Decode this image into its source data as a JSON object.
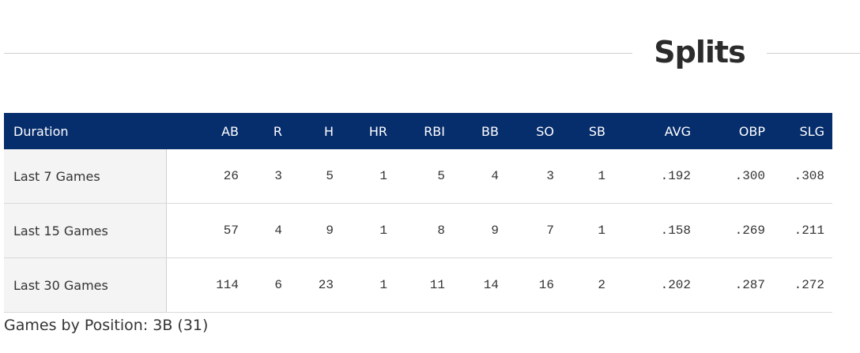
{
  "section": {
    "title": "Splits"
  },
  "table": {
    "columns": [
      "Duration",
      "AB",
      "R",
      "H",
      "HR",
      "RBI",
      "BB",
      "SO",
      "SB",
      "AVG",
      "OBP",
      "SLG"
    ],
    "rows": [
      [
        "Last 7 Games",
        "26",
        "3",
        "5",
        "1",
        "5",
        "4",
        "3",
        "1",
        ".192",
        ".300",
        ".308"
      ],
      [
        "Last 15 Games",
        "57",
        "4",
        "9",
        "1",
        "8",
        "9",
        "7",
        "1",
        ".158",
        ".269",
        ".211"
      ],
      [
        "Last 30 Games",
        "114",
        "6",
        "23",
        "1",
        "11",
        "14",
        "16",
        "2",
        ".202",
        ".287",
        ".272"
      ]
    ],
    "header_color": "#062d6c"
  },
  "footer": {
    "positions_text": "Games by Position: 3B (31)"
  }
}
